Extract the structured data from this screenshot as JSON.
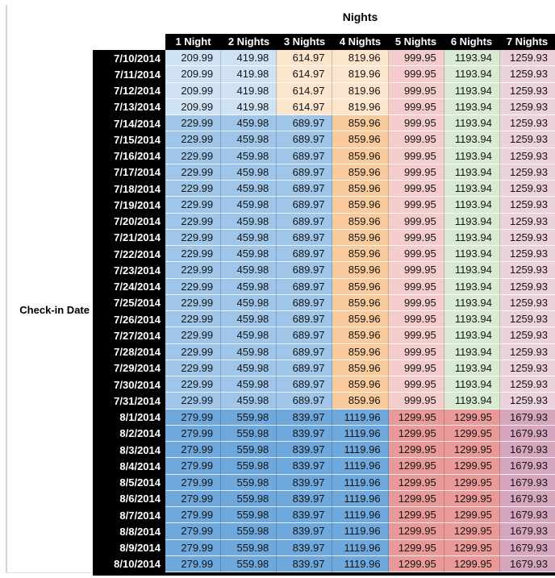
{
  "chart_data": {
    "type": "table",
    "title": "Nights",
    "row_axis_label": "Check-in Date",
    "columns": [
      "1 Night",
      "2 Nights",
      "3 Nights",
      "4 Nights",
      "5 Nights",
      "6 Nights",
      "7 Nights"
    ],
    "header_style": {
      "background": "#000000",
      "text_color": "#ffffff"
    },
    "sections": [
      {
        "dates": [
          "7/10/2014",
          "7/11/2014",
          "7/12/2014",
          "7/13/2014"
        ],
        "values": [
          "209.99",
          "419.98",
          "614.97",
          "819.96",
          "999.95",
          "1193.94",
          "1259.93"
        ],
        "cell_colors": [
          "#cfe2f3",
          "#cfe2f3",
          "#fce5cd",
          "#fce5cd",
          "#f4cccc",
          "#d9ead3",
          "#ead1dc"
        ]
      },
      {
        "dates": [
          "7/14/2014",
          "7/15/2014",
          "7/16/2014",
          "7/17/2014",
          "7/18/2014",
          "7/19/2014",
          "7/20/2014",
          "7/21/2014",
          "7/22/2014",
          "7/23/2014",
          "7/24/2014",
          "7/25/2014",
          "7/26/2014",
          "7/27/2014",
          "7/28/2014",
          "7/29/2014",
          "7/30/2014",
          "7/31/2014"
        ],
        "values": [
          "229.99",
          "459.98",
          "689.97",
          "859.96",
          "999.95",
          "1193.94",
          "1259.93"
        ],
        "cell_colors": [
          "#9fc5e8",
          "#9fc5e8",
          "#9fc5e8",
          "#f9cb9c",
          "#f4cccc",
          "#d9ead3",
          "#ead1dc"
        ]
      },
      {
        "dates": [
          "8/1/2014",
          "8/2/2014",
          "8/3/2014",
          "8/4/2014",
          "8/5/2014",
          "8/6/2014",
          "8/7/2014",
          "8/8/2014",
          "8/9/2014",
          "8/10/2014"
        ],
        "values": [
          "279.99",
          "559.98",
          "839.97",
          "1119.96",
          "1299.95",
          "1299.95",
          "1679.93"
        ],
        "cell_colors": [
          "#6fa8dc",
          "#6fa8dc",
          "#6fa8dc",
          "#6fa8dc",
          "#ea9999",
          "#ea9999",
          "#d5a6bd"
        ]
      }
    ]
  }
}
